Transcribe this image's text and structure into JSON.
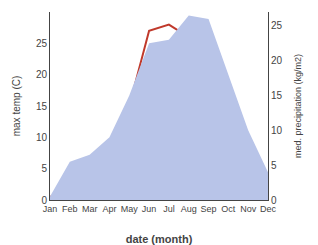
{
  "chart_data": {
    "type": "line",
    "categories": [
      "Jan",
      "Feb",
      "Mar",
      "Apr",
      "May",
      "Jun",
      "Jul",
      "Aug",
      "Sep",
      "Oct",
      "Nov",
      "Dec"
    ],
    "xlabel": "date (month)",
    "ylabel": "max temp (C)",
    "y2label": "med. precipitation (kg/m2)",
    "series": [
      {
        "type": "area",
        "color": "#b8c4e8",
        "axis": "y2",
        "values": [
          0.5,
          5.5,
          6.5,
          9.0,
          15.0,
          22.5,
          23.0,
          26.5,
          26.0,
          18.0,
          10.0,
          4.0
        ]
      },
      {
        "type": "line",
        "color": "#c0392b",
        "values": [
          0.5,
          1.0,
          4.0,
          9.0,
          15.0,
          27.0,
          28.0,
          26.0,
          18.0,
          9.0,
          2.5,
          0.3
        ]
      }
    ],
    "ylim": [
      0,
      30
    ],
    "yticks": [
      0,
      5,
      10,
      15,
      20,
      25
    ],
    "y2lim": [
      0,
      27
    ],
    "y2ticks": [
      0,
      5,
      10,
      15,
      20,
      25
    ],
    "grid": false
  }
}
